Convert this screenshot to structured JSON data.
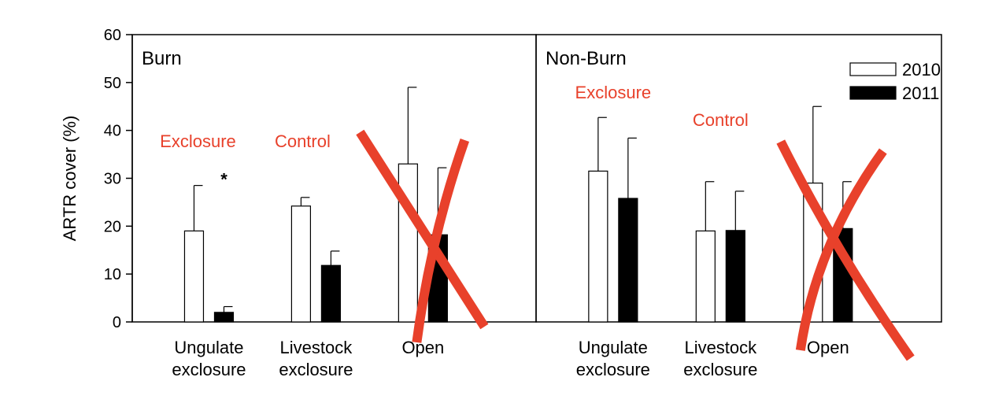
{
  "chart_data": {
    "type": "bar",
    "ylabel": "ARTR cover (%)",
    "ylim": [
      0,
      60
    ],
    "yticks": [
      0,
      10,
      20,
      30,
      40,
      50,
      60
    ],
    "legend": {
      "placement": "top-right",
      "entries": [
        "2010",
        "2011"
      ]
    },
    "series_colors": {
      "2010": "#ffffff",
      "2011": "#000000"
    },
    "annotation_color": "#e8412b",
    "panels": [
      {
        "title": "Burn",
        "categories": [
          {
            "line1": "Ungulate",
            "line2": "exclosure"
          },
          {
            "line1": "Livestock",
            "line2": "exclosure"
          },
          {
            "line1": "Open",
            "line2": ""
          }
        ],
        "series": [
          {
            "name": "2010",
            "values": [
              19,
              24.2,
              33
            ],
            "errors": [
              9.5,
              1.8,
              16
            ]
          },
          {
            "name": "2011",
            "values": [
              2,
              11.8,
              18.2
            ],
            "errors": [
              1.2,
              3.0,
              14
            ]
          }
        ],
        "significance": [
          {
            "category_index": 0,
            "symbol": "*"
          }
        ],
        "labels": [
          {
            "text": "Exclosure",
            "over_category": 0
          },
          {
            "text": "Control",
            "over_category": 1
          }
        ],
        "crossed_out_category": 2
      },
      {
        "title": "Non-Burn",
        "categories": [
          {
            "line1": "Ungulate",
            "line2": "exclosure"
          },
          {
            "line1": "Livestock",
            "line2": "exclosure"
          },
          {
            "line1": "Open",
            "line2": ""
          }
        ],
        "series": [
          {
            "name": "2010",
            "values": [
              31.5,
              19,
              29
            ],
            "errors": [
              11.2,
              10.3,
              16
            ]
          },
          {
            "name": "2011",
            "values": [
              25.8,
              19.1,
              19.5
            ],
            "errors": [
              12.6,
              8.2,
              9.8
            ]
          }
        ],
        "significance": [],
        "labels": [
          {
            "text": "Exclosure",
            "over_category": 0
          },
          {
            "text": "Control",
            "over_category": 1
          }
        ],
        "crossed_out_category": 2
      }
    ]
  }
}
